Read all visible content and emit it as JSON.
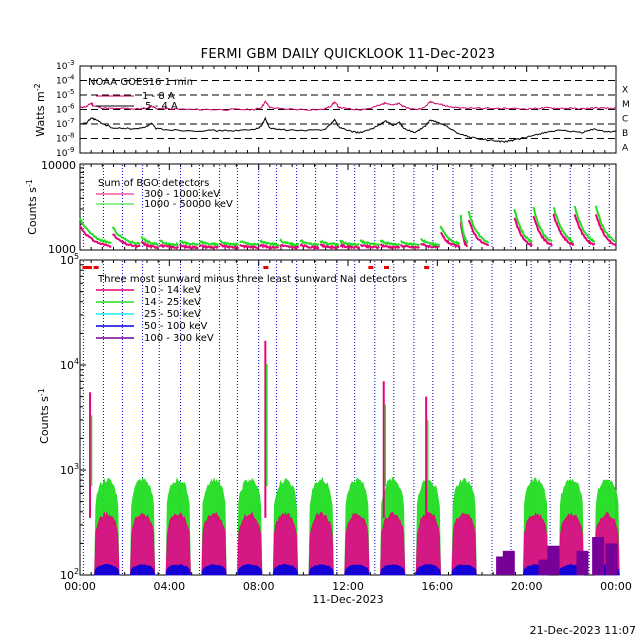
{
  "title": "FERMI GBM DAILY QUICKLOOK   11-Dec-2023",
  "footer": "21-Dec-2023 11:07",
  "colors": {
    "goes_long": "#cc0066",
    "goes_short": "#000000",
    "bgo_low": "#e8007a",
    "bgo_high": "#22dd22",
    "nai_10_14": "#e8007a",
    "nai_14_25": "#22dd22",
    "nai_25_50": "#22eeee",
    "nai_50_100": "#0000dd",
    "nai_100_300": "#770099",
    "orbit_lines": "#0000cc",
    "flare_marks": "#ee0000"
  },
  "time_axis": {
    "ticks": [
      "00:00",
      "04:00",
      "08:00",
      "12:00",
      "16:00",
      "20:00",
      "00:00"
    ],
    "date_label": "11-Dec-2023",
    "range_hours": [
      0,
      24
    ]
  },
  "chart_data": [
    {
      "id": "goes",
      "type": "line",
      "ylabel": "Watts m",
      "ylabel_exp": "-2",
      "yscale": "log",
      "ylim": [
        1e-09,
        0.001
      ],
      "ytick_labels": [
        "-9",
        "-8",
        "-7",
        "-6",
        "-5",
        "-4",
        "-3"
      ],
      "flare_classes": [
        "X",
        "M",
        "C",
        "B",
        "A"
      ],
      "legend_title": "NOAA GOES16 1 min",
      "series": [
        {
          "name": "1 - 8 A",
          "values": [
            [
              0.0,
              1.4e-06
            ],
            [
              0.3,
              1.6e-06
            ],
            [
              0.5,
              2.8e-06
            ],
            [
              0.6,
              1.8e-06
            ],
            [
              1.0,
              1.3e-06
            ],
            [
              1.6,
              1.1e-06
            ],
            [
              2.0,
              1.2e-06
            ],
            [
              2.5,
              1.1e-06
            ],
            [
              3.0,
              1.2e-06
            ],
            [
              3.2,
              1.8e-06
            ],
            [
              3.4,
              1.2e-06
            ],
            [
              4.0,
              1.1e-06
            ],
            [
              5.0,
              1e-06
            ],
            [
              6.0,
              1e-06
            ],
            [
              7.0,
              1e-06
            ],
            [
              7.8,
              1e-06
            ],
            [
              8.1,
              1.3e-06
            ],
            [
              8.3,
              3.5e-06
            ],
            [
              8.5,
              1.4e-06
            ],
            [
              9.0,
              1.1e-06
            ],
            [
              10.0,
              1e-06
            ],
            [
              10.9,
              1e-06
            ],
            [
              11.2,
              1.6e-06
            ],
            [
              11.4,
              3.2e-06
            ],
            [
              11.6,
              1.4e-06
            ],
            [
              12.0,
              1.1e-06
            ],
            [
              12.5,
              1e-06
            ],
            [
              13.0,
              1.2e-06
            ],
            [
              13.5,
              2.2e-06
            ],
            [
              13.7,
              3e-06
            ],
            [
              14.0,
              2e-06
            ],
            [
              14.3,
              2.6e-06
            ],
            [
              14.5,
              1.5e-06
            ],
            [
              15.0,
              1e-06
            ],
            [
              15.4,
              1.3e-06
            ],
            [
              15.7,
              3.6e-06
            ],
            [
              16.0,
              2.6e-06
            ],
            [
              16.5,
              1.6e-06
            ],
            [
              17.0,
              1.3e-06
            ],
            [
              18.0,
              1.2e-06
            ],
            [
              19.0,
              1.2e-06
            ],
            [
              20.0,
              1.1e-06
            ],
            [
              20.5,
              1.2e-06
            ],
            [
              21.0,
              1.3e-06
            ],
            [
              21.5,
              1.2e-06
            ],
            [
              22.0,
              1.2e-06
            ],
            [
              22.5,
              1.1e-06
            ],
            [
              23.0,
              1.3e-06
            ],
            [
              23.5,
              1.2e-06
            ],
            [
              24.0,
              1.2e-06
            ]
          ]
        },
        {
          "name": ".5 - 4 A",
          "values": [
            [
              0.0,
              9e-08
            ],
            [
              0.3,
              1.2e-07
            ],
            [
              0.5,
              2.6e-07
            ],
            [
              0.7,
              2e-07
            ],
            [
              1.0,
              1.1e-07
            ],
            [
              1.5,
              5e-08
            ],
            [
              2.0,
              5e-08
            ],
            [
              2.5,
              4.5e-08
            ],
            [
              3.0,
              7e-08
            ],
            [
              3.2,
              1.1e-07
            ],
            [
              3.4,
              5e-08
            ],
            [
              4.0,
              4e-08
            ],
            [
              5.0,
              3.5e-08
            ],
            [
              6.0,
              3.5e-08
            ],
            [
              7.0,
              3.5e-08
            ],
            [
              7.8,
              4e-08
            ],
            [
              8.1,
              7e-08
            ],
            [
              8.3,
              2.4e-07
            ],
            [
              8.5,
              5e-08
            ],
            [
              9.0,
              4e-08
            ],
            [
              10.0,
              3.5e-08
            ],
            [
              10.9,
              4e-08
            ],
            [
              11.2,
              9e-08
            ],
            [
              11.4,
              2e-07
            ],
            [
              11.6,
              6e-08
            ],
            [
              12.0,
              3.5e-08
            ],
            [
              12.5,
              2.5e-08
            ],
            [
              13.0,
              4e-08
            ],
            [
              13.5,
              1.1e-07
            ],
            [
              13.7,
              1.6e-07
            ],
            [
              14.0,
              8e-08
            ],
            [
              14.3,
              1.3e-07
            ],
            [
              14.5,
              5e-08
            ],
            [
              15.0,
              2.5e-08
            ],
            [
              15.4,
              6e-08
            ],
            [
              15.7,
              1.9e-07
            ],
            [
              16.0,
              1.3e-07
            ],
            [
              16.5,
              6e-08
            ],
            [
              17.0,
              2e-08
            ],
            [
              17.5,
              1.2e-08
            ],
            [
              18.0,
              9e-09
            ],
            [
              18.5,
              7e-09
            ],
            [
              19.0,
              6e-09
            ],
            [
              19.5,
              8e-09
            ],
            [
              20.0,
              1.2e-08
            ],
            [
              20.5,
              2e-08
            ],
            [
              21.0,
              3e-08
            ],
            [
              21.5,
              3.5e-08
            ],
            [
              22.0,
              3e-08
            ],
            [
              22.5,
              2.6e-08
            ],
            [
              23.0,
              4.5e-08
            ],
            [
              23.5,
              3e-08
            ],
            [
              24.0,
              3.2e-08
            ]
          ]
        }
      ]
    },
    {
      "id": "bgo",
      "type": "line",
      "ylabel": "Counts s",
      "ylabel_exp": "-1",
      "yscale": "log",
      "ylim": [
        1000,
        10000
      ],
      "ytick_labels": [
        "1000",
        "10000"
      ],
      "legend_title": "Sum of BGO detectors",
      "series": [
        {
          "name": "300 - 1000 keV",
          "segment_peaks": [
            1900,
            1550,
            1250,
            1150,
            1130,
            1130,
            1150,
            1150,
            1150,
            1150,
            1150,
            1140,
            1140,
            1150,
            1150,
            1130,
            1200,
            1600,
            2100,
            2250,
            2400,
            2500,
            2600
          ]
        },
        {
          "name": "1000 - 50000 keV",
          "segment_peaks": [
            2300,
            1850,
            1450,
            1300,
            1280,
            1270,
            1280,
            1280,
            1290,
            1300,
            1300,
            1280,
            1280,
            1300,
            1300,
            1270,
            1350,
            1900,
            2500,
            2800,
            3000,
            3100,
            3200
          ]
        }
      ]
    },
    {
      "id": "nai",
      "type": "line",
      "ylabel": "Counts s",
      "ylabel_exp": "-1",
      "yscale": "log",
      "ylim": [
        100,
        100000
      ],
      "ytick_labels": [
        "10",
        "10",
        "10",
        "10"
      ],
      "ytick_exps": [
        "2",
        "3",
        "4",
        "5"
      ],
      "legend_title": "Three most sunward minus three least sunward NaI detectors",
      "series": [
        {
          "name": "10 - 14 keV",
          "plateau_counts": 380
        },
        {
          "name": "14 - 25 keV",
          "plateau_counts": 800
        },
        {
          "name": "25 - 50 keV",
          "plateau_counts": 340
        },
        {
          "name": "50 - 100 keV",
          "plateau_counts": 125
        },
        {
          "name": "100 - 300 keV",
          "plateau_counts": 110
        }
      ],
      "spikes": [
        {
          "hour": 0.45,
          "counts": 5500
        },
        {
          "hour": 8.3,
          "counts": 17000
        },
        {
          "hour": 13.6,
          "counts": 7000
        },
        {
          "hour": 15.5,
          "counts": 5000
        }
      ],
      "flare_marks_hours": [
        0.2,
        0.4,
        0.7,
        8.3,
        13.0,
        13.7,
        15.5
      ]
    }
  ]
}
